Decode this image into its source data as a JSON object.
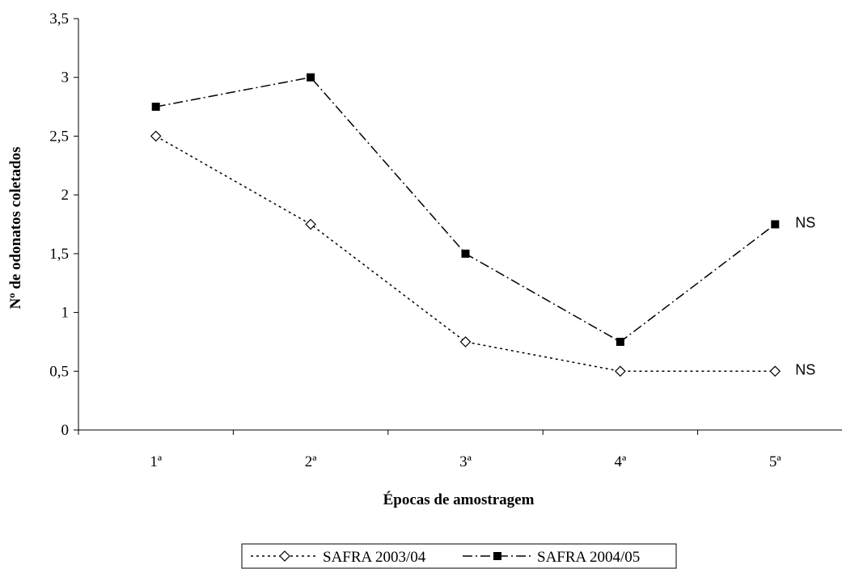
{
  "chart_data": {
    "type": "line",
    "categories": [
      "1ª",
      "2ª",
      "3ª",
      "4ª",
      "5ª"
    ],
    "series": [
      {
        "name": "SAFRA 2003/04",
        "values": [
          2.5,
          1.75,
          0.75,
          0.5,
          0.5
        ],
        "marker": "diamond-open",
        "line_style": "dotted",
        "color": "#000000"
      },
      {
        "name": "SAFRA 2004/05",
        "values": [
          2.75,
          3.0,
          1.5,
          0.75,
          1.75
        ],
        "marker": "square-filled",
        "line_style": "dash-dot",
        "color": "#000000"
      }
    ],
    "xlabel": "Épocas de amostragem",
    "ylabel": "Nº de odonatos coletados",
    "ylim": [
      0,
      3.5
    ],
    "yticks": [
      "0",
      "0,5",
      "1",
      "1,5",
      "2",
      "2,5",
      "3",
      "3,5"
    ],
    "grid": false,
    "legend_position": "bottom",
    "annotations": [
      {
        "text": "NS",
        "series": "SAFRA 2004/05",
        "category": "5ª"
      },
      {
        "text": "NS",
        "series": "SAFRA 2003/04",
        "category": "5ª"
      }
    ]
  }
}
